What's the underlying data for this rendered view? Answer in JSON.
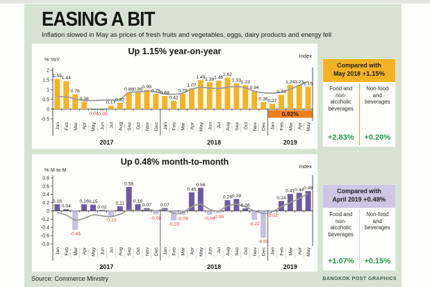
{
  "header": {
    "title": "EASING A BIT",
    "subtitle": "Inflation slowed in May as prices of fresh fruits and vegetables, eggs, dairy products and energy fell"
  },
  "footer": {
    "source": "Source: Commerce Ministry",
    "credit": "BANGKOK POST GRAPHICS"
  },
  "colors": {
    "background": "#d7e2d3",
    "bar_yellow": "#f5b324",
    "bar_yellow_negative": "#6b6b6b",
    "bar_purple": "#6d5a9e",
    "bar_purple_light": "#c7c1e0",
    "negative_label": "#e0392f",
    "positive_label": "#222222",
    "index_line": "#9a9a9a",
    "highlight_orange": "#ee7f1d",
    "highlight_text": "#3a2000",
    "green_value": "#1f9c46",
    "panel_header_yellow": "#f5b324",
    "panel_header_purple": "#cdc6e4",
    "axis": "#3c3c38"
  },
  "chart_data": [
    {
      "type": "bar",
      "title": "Up 1.15% year-on-year",
      "ylabel": "% YoY",
      "right_axis_label": "Index",
      "ylim": [
        -0.5,
        2
      ],
      "yticks": [
        2,
        1.5,
        1,
        0.5,
        0,
        -0.5
      ],
      "legend_position": "none",
      "grid": false,
      "categories": [
        "Jan",
        "Feb",
        "Mar",
        "Apr",
        "May",
        "Jun",
        "Jul",
        "Aug",
        "Sep",
        "Oct",
        "Nov",
        "Dec",
        "Jan",
        "Feb",
        "Mar",
        "Apr",
        "May",
        "Jun",
        "Jul",
        "Aug",
        "Sep",
        "Oct",
        "Nov",
        "Dec",
        "Jan",
        "Feb",
        "Mar",
        "Apr",
        "May"
      ],
      "year_groups": [
        {
          "label": "2017",
          "count": 12
        },
        {
          "label": "2018",
          "count": 12
        },
        {
          "label": "2019",
          "count": 5
        }
      ],
      "series": [
        {
          "name": "YoY inflation %",
          "type": "bar",
          "values": [
            1.55,
            1.44,
            0.76,
            0.38,
            -0.04,
            -0.05,
            0.17,
            0.32,
            0.86,
            0.86,
            0.99,
            0.78,
            0.68,
            0.42,
            0.79,
            1.07,
            1.49,
            1.38,
            1.46,
            1.62,
            1.33,
            1.23,
            0.94,
            0.36,
            0.27,
            0.73,
            1.24,
            1.23,
            1.15
          ]
        },
        {
          "name": "Index",
          "type": "line",
          "estimated": true,
          "values": [
            0.63,
            0.63,
            0.52,
            0.44,
            0.44,
            0.46,
            0.47,
            0.5,
            0.85,
            0.88,
            0.92,
            0.88,
            0.78,
            0.76,
            0.82,
            1.02,
            1.12,
            1.08,
            1.06,
            1.12,
            1.16,
            1.1,
            0.92,
            0.84,
            0.82,
            0.88,
            1.02,
            1.22,
            1.42
          ]
        }
      ],
      "highlight": {
        "label": "0.92%",
        "from_index": 24,
        "to_index": 28
      }
    },
    {
      "type": "bar",
      "title": "Up 0.48% month-to-month",
      "ylabel": "% M to M",
      "right_axis_label": "Index",
      "ylim": [
        -0.8,
        0.8
      ],
      "yticks": [
        0.8,
        0.6,
        0.4,
        0.2,
        0,
        -0.2,
        -0.4,
        -0.6,
        -0.8
      ],
      "legend_position": "none",
      "grid": false,
      "categories": [
        "Jan",
        "Feb",
        "Mar",
        "Apr",
        "May",
        "Jun",
        "Jul",
        "Aug",
        "Sep",
        "Oct",
        "Nov",
        "Dec",
        "Jan",
        "Feb",
        "Mar",
        "Apr",
        "May",
        "Jun",
        "Jul",
        "Aug",
        "Sep",
        "Oct",
        "Nov",
        "Dec",
        "Jan",
        "Feb",
        "Mar",
        "Apr",
        "May"
      ],
      "year_groups": [
        {
          "label": "2017",
          "count": 12
        },
        {
          "label": "2018",
          "count": 12
        },
        {
          "label": "2019",
          "count": 5
        }
      ],
      "series": [
        {
          "name": "MoM inflation %",
          "type": "bar",
          "values": [
            0.16,
            0.04,
            -0.46,
            0.16,
            0.15,
            0.02,
            -0.13,
            0.11,
            0.58,
            0.16,
            0.07,
            -0.08,
            0.07,
            -0.23,
            -0.09,
            0.45,
            0.56,
            -0.09,
            -0.05,
            0.26,
            0.29,
            0.06,
            -0.22,
            -0.65,
            -0.02,
            0.24,
            0.41,
            0.44,
            0.48
          ]
        },
        {
          "name": "Index",
          "type": "line",
          "estimated": true,
          "values": [
            -0.04,
            -0.1,
            -0.22,
            -0.18,
            -0.1,
            -0.12,
            -0.14,
            -0.08,
            0.02,
            0.0,
            0.04,
            0.0,
            0.04,
            -0.06,
            -0.04,
            0.1,
            0.16,
            0.04,
            0.0,
            0.12,
            0.16,
            0.1,
            0.0,
            -0.06,
            -0.02,
            0.1,
            0.2,
            0.3,
            0.42
          ]
        }
      ]
    }
  ],
  "panels": [
    {
      "header_line1": "Compared with",
      "header_prefix": "May 2018",
      "header_value": "+1.15%",
      "columns": [
        {
          "label": "Food and non-alcoholic beverages",
          "value": "+2.83%"
        },
        {
          "label": "Non-food and beverages",
          "value": "+0.20%"
        }
      ]
    },
    {
      "header_line1": "Compared with",
      "header_prefix": "April 2019",
      "header_value": "+0.48%",
      "columns": [
        {
          "label": "Food and non-alcoholic beverages",
          "value": "+1.07%"
        },
        {
          "label": "Non-food and beverages",
          "value": "+0.15%"
        }
      ]
    }
  ]
}
